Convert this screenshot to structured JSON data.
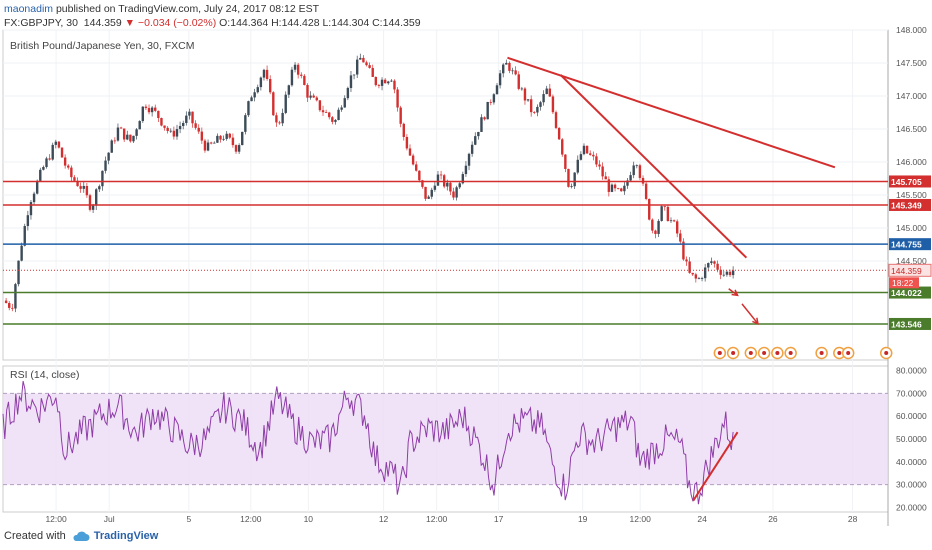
{
  "header": {
    "user": "maonadim",
    "published": "published on TradingView.com, July 24, 2017 08:12 EST",
    "symbol_line_prefix": "FX:GBPJPY, 30",
    "last": "144.359",
    "change": "▼ −0.034 (−0.02%)",
    "ohlc": "O:144.364 H:144.428 L:144.304 C:144.359"
  },
  "price_pane_title": "British Pound/Japanese Yen, 30, FXCM",
  "rsi_pane_title": "RSI (14, close)",
  "footer": {
    "created_with": "Created with",
    "brand": "TradingView"
  },
  "colors": {
    "red_line": "#d32f2f",
    "blue_line": "#1e5fa8",
    "green_line": "#4a7c2c",
    "candle_up": "#3c4b57",
    "candle_down": "#d32f2f",
    "rsi_line": "#8e3ca8",
    "rsi_band": "#eddcf5"
  },
  "chart_data": [
    {
      "type": "candlestick",
      "symbol": "GBPJPY",
      "ylim": [
        143.0,
        148.0
      ],
      "y_ticks": [
        "148.000",
        "147.500",
        "147.000",
        "146.500",
        "146.000",
        "145.500",
        "145.000",
        "144.500"
      ],
      "x_ticks": [
        "12:00",
        "Jul",
        "5",
        "12:00",
        "10",
        "12",
        "12:00",
        "17",
        "19",
        "12:00",
        "24",
        "26",
        "28"
      ],
      "horizontal_levels": [
        {
          "value": 145.705,
          "label": "145.705",
          "color": "red"
        },
        {
          "value": 145.349,
          "label": "145.349",
          "color": "red"
        },
        {
          "value": 144.755,
          "label": "144.755",
          "color": "blue"
        },
        {
          "value": 144.022,
          "label": "144.022",
          "color": "green"
        },
        {
          "value": 143.546,
          "label": "143.546",
          "color": "green"
        }
      ],
      "last_price": {
        "value": 144.359,
        "label": "144.359",
        "countdown": "18:22"
      },
      "trendlines": [
        {
          "from": [
            0.57,
            147.58
          ],
          "to": [
            0.94,
            145.92
          ]
        },
        {
          "from": [
            0.63,
            147.32
          ],
          "to": [
            0.84,
            144.55
          ]
        }
      ],
      "arrows": [
        {
          "from": [
            0.82,
            144.08
          ],
          "to": [
            0.83,
            143.98
          ]
        },
        {
          "from": [
            0.835,
            143.85
          ],
          "to": [
            0.853,
            143.55
          ]
        }
      ],
      "path_anchors": [
        [
          0.0,
          143.9
        ],
        [
          0.01,
          143.8
        ],
        [
          0.02,
          144.7
        ],
        [
          0.03,
          145.4
        ],
        [
          0.045,
          145.9
        ],
        [
          0.06,
          146.3
        ],
        [
          0.075,
          145.8
        ],
        [
          0.09,
          145.6
        ],
        [
          0.1,
          145.3
        ],
        [
          0.115,
          146.0
        ],
        [
          0.13,
          146.5
        ],
        [
          0.145,
          146.3
        ],
        [
          0.16,
          146.9
        ],
        [
          0.175,
          146.7
        ],
        [
          0.19,
          146.4
        ],
        [
          0.21,
          146.7
        ],
        [
          0.23,
          146.2
        ],
        [
          0.25,
          146.4
        ],
        [
          0.265,
          146.2
        ],
        [
          0.28,
          147.0
        ],
        [
          0.295,
          147.4
        ],
        [
          0.31,
          146.5
        ],
        [
          0.33,
          147.5
        ],
        [
          0.345,
          147.0
        ],
        [
          0.36,
          146.8
        ],
        [
          0.375,
          146.6
        ],
        [
          0.39,
          147.2
        ],
        [
          0.405,
          147.6
        ],
        [
          0.42,
          147.2
        ],
        [
          0.44,
          147.3
        ],
        [
          0.45,
          146.5
        ],
        [
          0.46,
          146.1
        ],
        [
          0.47,
          145.7
        ],
        [
          0.48,
          145.4
        ],
        [
          0.49,
          145.8
        ],
        [
          0.51,
          145.5
        ],
        [
          0.53,
          146.3
        ],
        [
          0.55,
          146.9
        ],
        [
          0.56,
          147.3
        ],
        [
          0.57,
          147.5
        ],
        [
          0.585,
          147.1
        ],
        [
          0.6,
          146.7
        ],
        [
          0.615,
          147.1
        ],
        [
          0.63,
          146.3
        ],
        [
          0.64,
          145.6
        ],
        [
          0.655,
          146.2
        ],
        [
          0.67,
          146.0
        ],
        [
          0.685,
          145.6
        ],
        [
          0.7,
          145.5
        ],
        [
          0.715,
          146.1
        ],
        [
          0.725,
          145.5
        ],
        [
          0.735,
          144.9
        ],
        [
          0.745,
          145.3
        ],
        [
          0.76,
          145.0
        ],
        [
          0.775,
          144.3
        ],
        [
          0.785,
          144.2
        ],
        [
          0.8,
          144.5
        ],
        [
          0.815,
          144.3
        ],
        [
          0.825,
          144.36
        ]
      ]
    },
    {
      "type": "line",
      "name": "RSI (14, close)",
      "ylim": [
        18,
        82
      ],
      "y_ticks": [
        "80.0000",
        "70.0000",
        "60.0000",
        "50.0000",
        "40.0000",
        "30.0000",
        "20.0000"
      ],
      "band": [
        30,
        70
      ],
      "trendline": {
        "from": [
          0.78,
          23
        ],
        "to": [
          0.83,
          53
        ]
      },
      "path_anchors": [
        [
          0.0,
          55
        ],
        [
          0.02,
          70
        ],
        [
          0.04,
          63
        ],
        [
          0.06,
          70
        ],
        [
          0.07,
          45
        ],
        [
          0.09,
          53
        ],
        [
          0.11,
          60
        ],
        [
          0.13,
          65
        ],
        [
          0.15,
          52
        ],
        [
          0.17,
          62
        ],
        [
          0.19,
          55
        ],
        [
          0.21,
          47
        ],
        [
          0.23,
          50
        ],
        [
          0.25,
          64
        ],
        [
          0.27,
          58
        ],
        [
          0.29,
          45
        ],
        [
          0.31,
          68
        ],
        [
          0.33,
          55
        ],
        [
          0.35,
          48
        ],
        [
          0.37,
          50
        ],
        [
          0.39,
          70
        ],
        [
          0.41,
          60
        ],
        [
          0.42,
          42
        ],
        [
          0.44,
          35
        ],
        [
          0.45,
          28
        ],
        [
          0.46,
          48
        ],
        [
          0.48,
          55
        ],
        [
          0.5,
          53
        ],
        [
          0.52,
          60
        ],
        [
          0.54,
          45
        ],
        [
          0.555,
          30
        ],
        [
          0.57,
          55
        ],
        [
          0.59,
          58
        ],
        [
          0.61,
          55
        ],
        [
          0.62,
          40
        ],
        [
          0.635,
          28
        ],
        [
          0.65,
          52
        ],
        [
          0.67,
          48
        ],
        [
          0.69,
          55
        ],
        [
          0.71,
          58
        ],
        [
          0.72,
          40
        ],
        [
          0.735,
          45
        ],
        [
          0.75,
          50
        ],
        [
          0.765,
          48
        ],
        [
          0.775,
          30
        ],
        [
          0.785,
          26
        ],
        [
          0.8,
          42
        ],
        [
          0.815,
          58
        ],
        [
          0.825,
          48
        ]
      ]
    }
  ]
}
